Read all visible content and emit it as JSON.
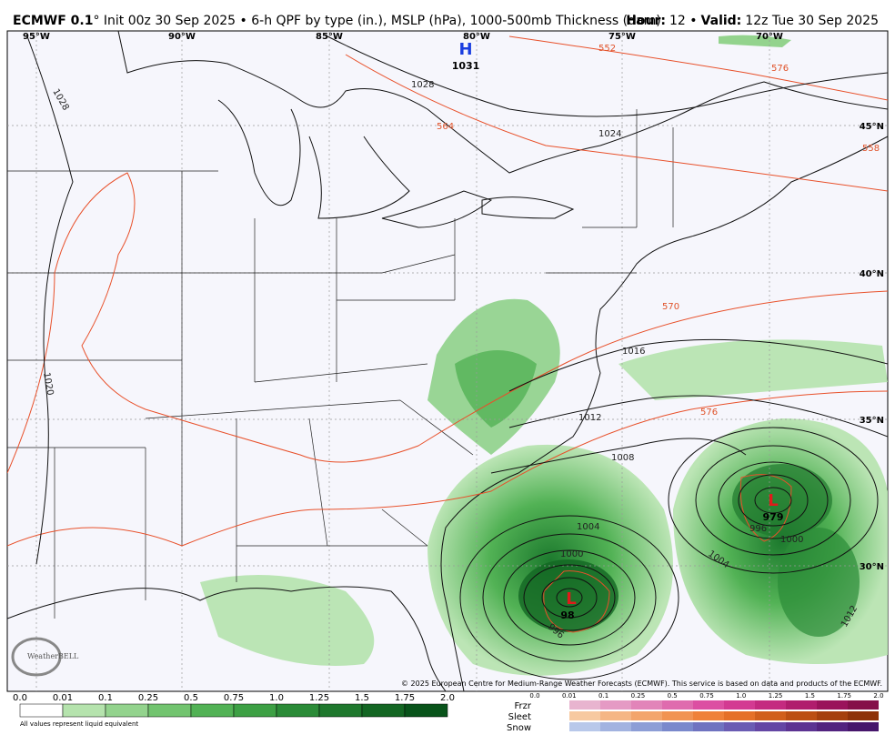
{
  "header": {
    "model": "ECMWF 0.1",
    "description": "° Init 00z 30 Sep 2025 • 6-h QPF by type (in.), MSLP (hPa), 1000-500mb Thickness (dam)",
    "hour_label": "Hour:",
    "hour": "12 •",
    "valid_label": "Valid:",
    "valid": "12z Tue 30 Sep 2025"
  },
  "map": {
    "longitudes": [
      "95°W",
      "90°W",
      "85°W",
      "80°W",
      "75°W",
      "70°W"
    ],
    "latitudes": [
      "45°N",
      "40°N",
      "35°N",
      "30°N"
    ],
    "highs": [
      {
        "letter": "H",
        "value": "1031"
      }
    ],
    "lows": [
      {
        "letter": "L",
        "value": "979"
      },
      {
        "letter": "L",
        "value": "98"
      }
    ],
    "isobar_labels": [
      "1028",
      "1028",
      "1024",
      "1020",
      "1016",
      "1012",
      "1008",
      "1004",
      "1004",
      "1000",
      "1000",
      "996",
      "996",
      "1012"
    ],
    "thickness_labels": [
      "552",
      "576",
      "564",
      "558",
      "570",
      "576"
    ],
    "credit": "© 2025 European Centre for Medium-Range Weather Forecasts (ECMWF). This service is based on data and products of the ECMWF.",
    "logo": "WeatherBELL"
  },
  "legend": {
    "qpf_ticks": [
      "0.0",
      "0.01",
      "0.1",
      "0.25",
      "0.5",
      "0.75",
      "1.0",
      "1.25",
      "1.5",
      "1.75",
      "2.0"
    ],
    "qpf_colors": [
      "#ffffff",
      "#b5e3ad",
      "#93d38d",
      "#72c46f",
      "#52b255",
      "#3da044",
      "#2b8b37",
      "#1f782d",
      "#136623",
      "#08531a"
    ],
    "note": "All values represent liquid equivalent",
    "ptype": [
      {
        "name": "Frzr",
        "colors": [
          "#e8b4cf",
          "#e59ac4",
          "#e284b9",
          "#df6bae",
          "#dc4fa2",
          "#d33a92",
          "#c42a80",
          "#b01d6d",
          "#9a135b",
          "#851049"
        ]
      },
      {
        "name": "Sleet",
        "colors": [
          "#f7c9a0",
          "#f5b685",
          "#f3a56c",
          "#f19352",
          "#ef8139",
          "#e57028",
          "#d15f1c",
          "#bc4f13",
          "#a5400d",
          "#8e3208"
        ]
      },
      {
        "name": "Snow",
        "colors": [
          "#b8c8ea",
          "#a2b3e0",
          "#8d9ed6",
          "#7a89cc",
          "#6f73c0",
          "#6a5cb3",
          "#6446a4",
          "#5c3392",
          "#52237f",
          "#46166b"
        ]
      }
    ],
    "ptype_ticks": [
      "0.0",
      "0.01",
      "0.1",
      "0.25",
      "0.5",
      "0.75",
      "1.0",
      "1.25",
      "1.5",
      "1.75",
      "2.0"
    ]
  }
}
